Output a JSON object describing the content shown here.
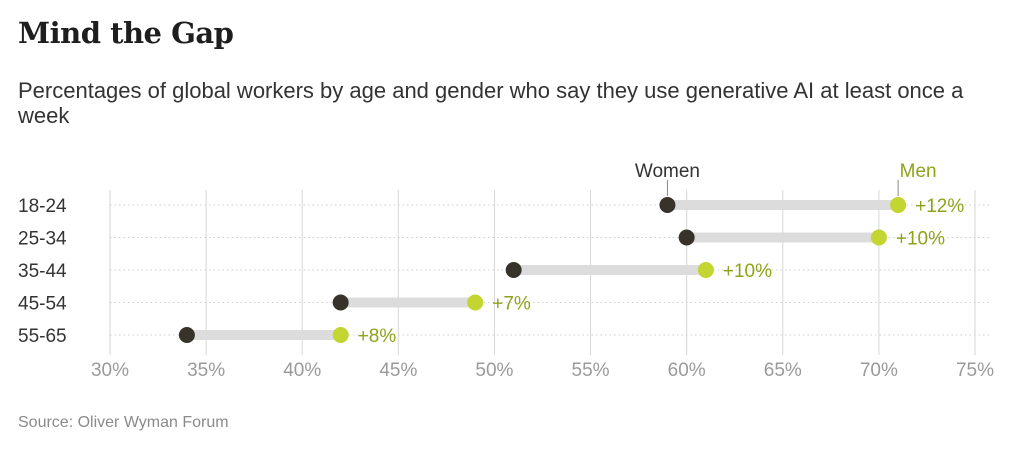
{
  "title": "Mind the Gap",
  "subtitle": "Percentages of global workers by age and gender who say they use generative AI at least once a week",
  "source": "Source: Oliver Wyman Forum",
  "colors": {
    "women": "#38332a",
    "men": "#c3d531",
    "gap": "#dcdcdc",
    "grid": "#d6d6d6",
    "tick": "#9a9a9a",
    "text": "#333333"
  },
  "chart_data": {
    "type": "dumbbell",
    "categories": [
      "18-24",
      "25-34",
      "35-44",
      "45-54",
      "55-65"
    ],
    "series": [
      {
        "name": "Women",
        "values": [
          59,
          60,
          51,
          42,
          34
        ]
      },
      {
        "name": "Men",
        "values": [
          71,
          70,
          61,
          49,
          42
        ]
      }
    ],
    "gap_labels": [
      "+12%",
      "+10%",
      "+10%",
      "+7%",
      "+8%"
    ],
    "xlim": [
      30,
      75
    ],
    "xticks": [
      30,
      35,
      40,
      45,
      50,
      55,
      60,
      65,
      70,
      75
    ],
    "xtick_labels": [
      "30%",
      "35%",
      "40%",
      "45%",
      "50%",
      "55%",
      "60%",
      "65%",
      "70%",
      "75%"
    ],
    "grid": true,
    "legend": "inline-top"
  }
}
